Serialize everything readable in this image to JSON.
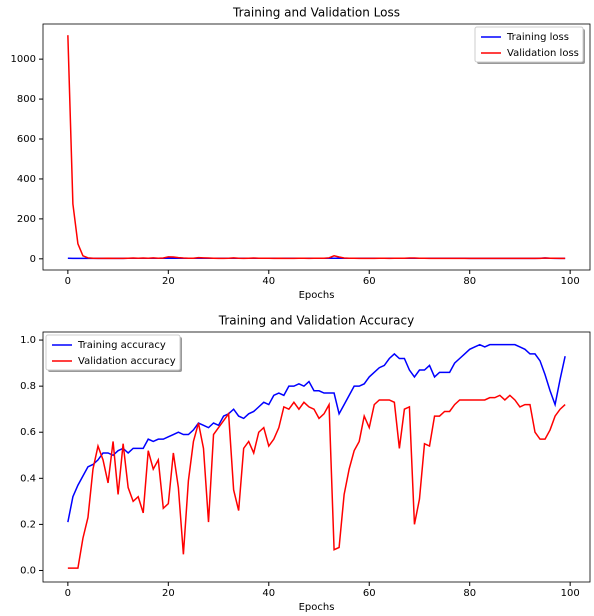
{
  "chart_data": [
    {
      "type": "line",
      "title": "Training and Validation Loss",
      "x_label": "Epochs",
      "x": [
        0,
        1,
        2,
        3,
        4,
        5,
        6,
        7,
        8,
        9,
        10,
        11,
        12,
        13,
        14,
        15,
        16,
        17,
        18,
        19,
        20,
        21,
        22,
        23,
        24,
        25,
        26,
        27,
        28,
        29,
        30,
        31,
        32,
        33,
        34,
        35,
        36,
        37,
        38,
        39,
        40,
        41,
        42,
        43,
        44,
        45,
        46,
        47,
        48,
        49,
        50,
        51,
        52,
        53,
        54,
        55,
        56,
        57,
        58,
        59,
        60,
        61,
        62,
        63,
        64,
        65,
        66,
        67,
        68,
        69,
        70,
        71,
        72,
        73,
        74,
        75,
        76,
        77,
        78,
        79,
        80,
        81,
        82,
        83,
        84,
        85,
        86,
        87,
        88,
        89,
        90,
        91,
        92,
        93,
        94,
        95,
        96,
        97,
        98,
        99
      ],
      "series": [
        {
          "name": "Training loss",
          "color": "#0000ff",
          "values": [
            3,
            2,
            2,
            2,
            2,
            2,
            2,
            2,
            2,
            2,
            2,
            2,
            3,
            3,
            3,
            3,
            3,
            3,
            3,
            3,
            3,
            3,
            3,
            3,
            3,
            3,
            3,
            3,
            3,
            3,
            3,
            3,
            3,
            3,
            3,
            3,
            3,
            3,
            3,
            3,
            3,
            3,
            3,
            3,
            3,
            3,
            3,
            3,
            3,
            3,
            3,
            3,
            3,
            3,
            3,
            3,
            3,
            3,
            3,
            3,
            3,
            3,
            3,
            3,
            3,
            3,
            3,
            3,
            3,
            3,
            3,
            3,
            3,
            3,
            3,
            3,
            3,
            3,
            3,
            3,
            2,
            2,
            2,
            2,
            2,
            2,
            2,
            2,
            2,
            2,
            2,
            2,
            2,
            2,
            3,
            4,
            3,
            2,
            2,
            2
          ]
        },
        {
          "name": "Validation loss",
          "color": "#ff0000",
          "values": [
            1120,
            275,
            75,
            15,
            5,
            3,
            2,
            2,
            3,
            2,
            2,
            2,
            3,
            4,
            3,
            4,
            3,
            5,
            3,
            4,
            10,
            9,
            6,
            4,
            3,
            3,
            6,
            5,
            4,
            3,
            2,
            2,
            3,
            5,
            3,
            2,
            3,
            4,
            3,
            3,
            3,
            2,
            3,
            2,
            2,
            2,
            3,
            3,
            2,
            3,
            3,
            3,
            5,
            15,
            9,
            4,
            3,
            3,
            2,
            2,
            2,
            2,
            3,
            3,
            2,
            3,
            3,
            3,
            4,
            4,
            3,
            3,
            2,
            2,
            2,
            2,
            2,
            2,
            2,
            2,
            2,
            2,
            2,
            2,
            2,
            2,
            2,
            2,
            2,
            2,
            2,
            2,
            2,
            2,
            2,
            4,
            3,
            3,
            2,
            2
          ]
        }
      ],
      "xlim": [
        -4.95,
        103.95
      ],
      "xticks": [
        0,
        20,
        40,
        60,
        80,
        100
      ],
      "ylim": [
        -56,
        1176
      ],
      "yticks": [
        0,
        200,
        400,
        600,
        800,
        1000
      ],
      "legend": "upper right"
    },
    {
      "type": "line",
      "title": "Training and Validation Accuracy",
      "x_label": "Epochs",
      "x": [
        0,
        1,
        2,
        3,
        4,
        5,
        6,
        7,
        8,
        9,
        10,
        11,
        12,
        13,
        14,
        15,
        16,
        17,
        18,
        19,
        20,
        21,
        22,
        23,
        24,
        25,
        26,
        27,
        28,
        29,
        30,
        31,
        32,
        33,
        34,
        35,
        36,
        37,
        38,
        39,
        40,
        41,
        42,
        43,
        44,
        45,
        46,
        47,
        48,
        49,
        50,
        51,
        52,
        53,
        54,
        55,
        56,
        57,
        58,
        59,
        60,
        61,
        62,
        63,
        64,
        65,
        66,
        67,
        68,
        69,
        70,
        71,
        72,
        73,
        74,
        75,
        76,
        77,
        78,
        79,
        80,
        81,
        82,
        83,
        84,
        85,
        86,
        87,
        88,
        89,
        90,
        91,
        92,
        93,
        94,
        95,
        96,
        97,
        98,
        99
      ],
      "series": [
        {
          "name": "Training accuracy",
          "color": "#0000ff",
          "values": [
            0.21,
            0.32,
            0.37,
            0.41,
            0.45,
            0.46,
            0.48,
            0.51,
            0.51,
            0.5,
            0.52,
            0.53,
            0.51,
            0.53,
            0.53,
            0.53,
            0.57,
            0.56,
            0.57,
            0.57,
            0.58,
            0.59,
            0.6,
            0.59,
            0.59,
            0.61,
            0.64,
            0.63,
            0.62,
            0.64,
            0.63,
            0.67,
            0.68,
            0.7,
            0.67,
            0.66,
            0.68,
            0.69,
            0.71,
            0.73,
            0.72,
            0.76,
            0.77,
            0.76,
            0.8,
            0.8,
            0.81,
            0.8,
            0.82,
            0.78,
            0.78,
            0.77,
            0.77,
            0.77,
            0.68,
            0.72,
            0.76,
            0.8,
            0.8,
            0.81,
            0.84,
            0.86,
            0.88,
            0.89,
            0.92,
            0.94,
            0.92,
            0.92,
            0.87,
            0.84,
            0.87,
            0.87,
            0.89,
            0.84,
            0.86,
            0.86,
            0.86,
            0.9,
            0.92,
            0.94,
            0.96,
            0.97,
            0.98,
            0.97,
            0.98,
            0.98,
            0.98,
            0.98,
            0.98,
            0.98,
            0.97,
            0.96,
            0.94,
            0.94,
            0.91,
            0.85,
            0.78,
            0.72,
            0.83,
            0.93
          ]
        },
        {
          "name": "Validation accuracy",
          "color": "#ff0000",
          "values": [
            0.01,
            0.01,
            0.01,
            0.14,
            0.23,
            0.44,
            0.54,
            0.48,
            0.38,
            0.56,
            0.33,
            0.55,
            0.36,
            0.3,
            0.32,
            0.25,
            0.52,
            0.44,
            0.48,
            0.27,
            0.29,
            0.51,
            0.36,
            0.07,
            0.39,
            0.56,
            0.64,
            0.53,
            0.21,
            0.59,
            0.62,
            0.65,
            0.68,
            0.35,
            0.26,
            0.53,
            0.56,
            0.51,
            0.6,
            0.62,
            0.54,
            0.57,
            0.62,
            0.71,
            0.7,
            0.73,
            0.7,
            0.73,
            0.71,
            0.7,
            0.66,
            0.68,
            0.72,
            0.09,
            0.1,
            0.33,
            0.44,
            0.52,
            0.56,
            0.67,
            0.62,
            0.72,
            0.74,
            0.74,
            0.74,
            0.73,
            0.53,
            0.7,
            0.71,
            0.2,
            0.31,
            0.55,
            0.54,
            0.67,
            0.67,
            0.69,
            0.69,
            0.72,
            0.74,
            0.74,
            0.74,
            0.74,
            0.74,
            0.74,
            0.75,
            0.75,
            0.76,
            0.74,
            0.76,
            0.74,
            0.71,
            0.72,
            0.72,
            0.6,
            0.57,
            0.57,
            0.61,
            0.67,
            0.7,
            0.72
          ]
        }
      ],
      "xlim": [
        -4.95,
        103.95
      ],
      "xticks": [
        0,
        20,
        40,
        60,
        80,
        100
      ],
      "ylim": [
        -0.05,
        1.035
      ],
      "yticks": [
        {
          "value": 0,
          "label": "0.0"
        },
        0.2,
        0.4,
        0.6,
        0.8,
        {
          "value": 1,
          "label": "1.0"
        }
      ],
      "legend": "upper left"
    }
  ]
}
